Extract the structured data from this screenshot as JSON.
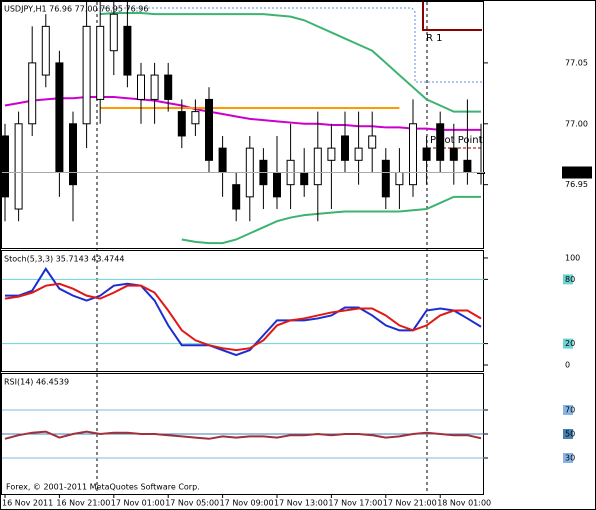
{
  "chart_data": [
    {
      "type": "candlestick",
      "title": "USDJPY,H1 76.96 77.00 76.95 76.96",
      "annotations": [
        "R 1",
        "Pivot Point"
      ],
      "ylim": [
        76.898,
        77.1
      ],
      "yticks": [
        76.95,
        {
          "value": 77,
          "label": "77.00"
        },
        77.05
      ],
      "last_price": 76.96,
      "up_color": "#ffffff",
      "down_color": "#000000",
      "open": [
        76.99,
        76.93,
        77.0,
        77.04,
        77.05,
        77.0,
        77.0,
        77.02,
        77.06,
        77.08,
        77.02,
        77.02,
        77.04,
        77.01,
        77.0,
        77.02,
        76.98,
        76.95,
        76.94,
        76.97,
        76.96,
        76.95,
        76.96,
        76.95,
        76.97,
        76.99,
        76.97,
        76.98,
        76.97,
        76.95,
        76.95,
        76.98,
        77.0,
        76.98,
        76.97,
        76.96
      ],
      "high": [
        77.0,
        77.01,
        77.08,
        77.09,
        77.06,
        77.01,
        77.1,
        77.1,
        77.1,
        77.1,
        77.05,
        77.05,
        77.05,
        77.02,
        77.02,
        77.03,
        76.99,
        76.96,
        76.99,
        76.98,
        76.99,
        77.0,
        76.98,
        77.01,
        77.0,
        77.01,
        77.01,
        77.01,
        76.98,
        76.98,
        77.02,
        76.99,
        77.01,
        77.0,
        77.02,
        77.0
      ],
      "low": [
        76.92,
        76.92,
        76.99,
        77.03,
        76.94,
        76.92,
        76.98,
        77.0,
        77.04,
        77.03,
        77.0,
        77.0,
        77.01,
        76.98,
        76.99,
        76.96,
        76.94,
        76.92,
        76.92,
        76.93,
        76.93,
        76.93,
        76.94,
        76.92,
        76.93,
        76.96,
        76.95,
        76.96,
        76.93,
        76.93,
        76.94,
        76.95,
        76.96,
        76.95,
        76.95,
        76.95
      ],
      "close": [
        76.94,
        77.0,
        77.05,
        77.08,
        76.96,
        76.95,
        77.08,
        77.08,
        77.09,
        77.04,
        77.04,
        77.04,
        77.02,
        76.99,
        77.01,
        76.97,
        76.96,
        76.93,
        76.98,
        76.95,
        76.94,
        76.97,
        76.95,
        76.98,
        76.98,
        76.97,
        76.98,
        76.99,
        76.94,
        76.96,
        77.0,
        76.97,
        76.97,
        76.97,
        76.96,
        76.96
      ],
      "lines": [
        {
          "color": "#cc00cc",
          "values": [
            77.015,
            77.017,
            77.019,
            77.02,
            77.021,
            77.021,
            77.022,
            77.022,
            77.022,
            77.021,
            77.02,
            77.019,
            77.017,
            77.015,
            77.012,
            77.01,
            77.008,
            77.006,
            77.004,
            77.003,
            77.002,
            77.001,
            77,
            77,
            76.999,
            76.999,
            76.998,
            76.998,
            76.997,
            76.997,
            76.996,
            76.996,
            76.995,
            76.995,
            76.995,
            76.995
          ]
        },
        {
          "color": "#3cb371",
          "values": [
            null,
            null,
            null,
            null,
            null,
            null,
            null,
            77.09,
            77.091,
            77.091,
            77.091,
            77.09,
            77.09,
            77.09,
            77.09,
            77.09,
            77.09,
            77.09,
            77.09,
            77.09,
            77.089,
            77.088,
            77.085,
            77.08,
            77.075,
            77.07,
            77.065,
            77.06,
            77.05,
            77.04,
            77.03,
            77.02,
            77.015,
            77.01,
            77.01,
            77.01
          ]
        },
        {
          "color": "#3cb371",
          "values": [
            null,
            null,
            null,
            null,
            null,
            null,
            null,
            null,
            null,
            null,
            null,
            null,
            null,
            76.905,
            76.903,
            76.902,
            76.902,
            76.905,
            76.91,
            76.915,
            76.92,
            76.923,
            76.925,
            76.926,
            76.927,
            76.928,
            76.928,
            76.928,
            76.928,
            76.928,
            76.929,
            76.93,
            76.935,
            76.94,
            76.94,
            76.94
          ]
        },
        {
          "color": "#ff9900",
          "values": [
            null,
            null,
            null,
            null,
            null,
            null,
            null,
            77.013,
            77.013,
            77.013,
            77.013,
            77.013,
            77.013,
            77.013,
            77.013,
            77.013,
            77.013,
            77.013,
            77.013,
            77.013,
            77.013,
            77.013,
            77.013,
            77.013,
            77.013,
            77.013,
            77.013,
            77.013,
            77.013,
            77.013,
            null,
            null,
            null,
            null,
            null,
            null
          ]
        }
      ]
    },
    {
      "type": "line",
      "title": "Stoch(5,3,3) 35.7143 43.4744",
      "ylim": [
        -5.6,
        106.5
      ],
      "yticks": [
        0,
        20,
        80,
        100
      ],
      "levels": [
        20,
        80
      ],
      "level_colors": [
        "#6cd3d3",
        "#6cd3d3"
      ],
      "series": [
        {
          "color": "#1c2ed0",
          "values": [
            64.8,
            64.8,
            69.4,
            89.8,
            71.3,
            64.8,
            60.2,
            64.8,
            74.1,
            75.9,
            74.1,
            60.2,
            37,
            18.5,
            18.5,
            18.5,
            13.9,
            9.3,
            13.9,
            27.8,
            41.7,
            41.7,
            41.7,
            43.5,
            46.3,
            53.7,
            53.7,
            46.3,
            37,
            32.4,
            32.4,
            50.9,
            52.8,
            50.9,
            43.5,
            35.7143
          ]
        },
        {
          "color": "#e01818",
          "values": [
            62,
            63.9,
            67.6,
            74.1,
            75.9,
            71.3,
            64.8,
            62,
            67.6,
            74.1,
            74.1,
            67.6,
            50.9,
            32.4,
            23.1,
            18.5,
            15.7,
            13.9,
            15.7,
            23.1,
            37,
            41.7,
            43.5,
            46.3,
            49.1,
            50.9,
            52.8,
            52.8,
            46.3,
            37,
            32.4,
            37,
            46.3,
            50.9,
            50.9,
            43.4744
          ]
        }
      ]
    },
    {
      "type": "line",
      "title": "RSI(14) 46.4539",
      "note": "Forex, © 2001-2011 MetaQuotes Software Corp.",
      "ylim": [
        0,
        100
      ],
      "yticks": [
        30,
        50,
        70
      ],
      "levels": [
        30,
        50,
        70
      ],
      "level_colors": [
        "#87b5e8",
        "#4682b4",
        "#87b5e8"
      ],
      "categories": [
        "16 Nov 2011",
        null,
        null,
        null,
        "16 Nov 21:00",
        null,
        null,
        null,
        "17 Nov 01:00",
        null,
        null,
        null,
        "17 Nov 05:00",
        null,
        null,
        null,
        "17 Nov 09:00",
        null,
        null,
        null,
        "17 Nov 13:00",
        null,
        null,
        null,
        "17 Nov 17:00",
        null,
        null,
        null,
        "17 Nov 21:00",
        null,
        null,
        null,
        "18 Nov 01:00",
        null,
        null,
        null
      ],
      "series": [
        {
          "color": "#a0303a",
          "values": [
            46,
            49,
            51,
            52,
            47,
            50,
            52,
            50,
            51,
            51,
            50,
            50,
            49,
            48,
            47,
            46,
            48,
            47,
            48,
            48,
            47,
            49,
            49,
            50,
            49,
            50,
            50,
            49,
            47,
            48,
            50,
            51,
            50,
            49,
            49,
            46.4539
          ]
        }
      ]
    }
  ]
}
